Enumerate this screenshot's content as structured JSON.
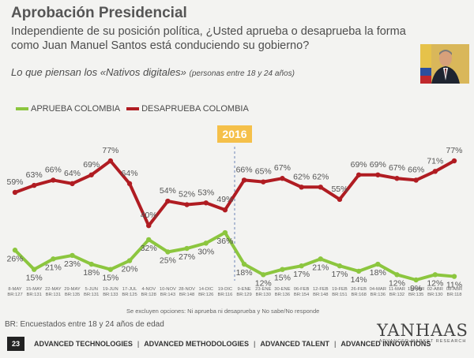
{
  "header": {
    "title": "Aprobación Presidencial",
    "question": "Independiente de su posición política, ¿Usted aprueba o desaprueba la forma como Juan Manuel Santos está conduciendo su gobierno?",
    "subtitle": "Lo que piensan los «Nativos digitales»",
    "subtitle_note": "(personas entre 18 y 24 años)"
  },
  "chart_data": {
    "type": "line",
    "title": "Aprobación Presidencial",
    "year_marker": {
      "label": "2016",
      "color": "#f5c04a",
      "after_category_index": 14
    },
    "categories": [
      "8-MAY",
      "15-MAY",
      "22-MAY",
      "29-MAY",
      "5-JUN",
      "19-JUN",
      "17-JUL",
      "4-NOV",
      "10-NOV",
      "28-NOV",
      "14-DIC",
      "19-DIC",
      "9-ENE",
      "23-ENE",
      "30-ENE",
      "06-FEB",
      "12-FEB",
      "19-FEB",
      "26-FEB",
      "04-MAR",
      "11-MAR",
      "18-MAR",
      "02-ABR",
      "08-ABR"
    ],
    "sample_sizes": [
      "BR:127",
      "BR:131",
      "BR:131",
      "BR:135",
      "BR:131",
      "BR:133",
      "BR:125",
      "BR:128",
      "BR:143",
      "BR:148",
      "BR:126",
      "BR:116",
      "BR:129",
      "BR:130",
      "BR:136",
      "BR:154",
      "BR:148",
      "BR:151",
      "BR:168",
      "BR:136",
      "BR:132",
      "BR:135",
      "BR:130",
      "BR:118"
    ],
    "series": [
      {
        "name": "APRUEBA COLOMBIA",
        "color": "#8cc63f",
        "values": [
          26,
          15,
          21,
          23,
          18,
          15,
          20,
          32,
          25,
          27,
          30,
          36,
          18,
          12,
          15,
          17,
          21,
          17,
          14,
          18,
          12,
          9,
          12,
          11
        ]
      },
      {
        "name": "DESAPRUEBA COLOMBIA",
        "color": "#b01c22",
        "values": [
          59,
          63,
          66,
          64,
          69,
          77,
          64,
          40,
          54,
          52,
          53,
          49,
          66,
          65,
          67,
          62,
          62,
          55,
          69,
          69,
          67,
          66,
          71,
          77
        ]
      }
    ],
    "ylim": [
      0,
      100
    ],
    "xlabel": "",
    "ylabel": ""
  },
  "footnote": "Se excluyen opciones: Ni aprueba ni desaprueba y No sabe/No responde",
  "base_note": "BR: Encuestados entre 18 y 24 años de edad",
  "footer": {
    "page": "23",
    "items": [
      "ADVANCED TECHNOLOGIES",
      "ADVANCED METHODOLOGIES",
      "ADVANCED TALENT",
      "ADVANCED INNOVATIONS"
    ],
    "separator": "|"
  },
  "logo": {
    "name": "YANHAAS",
    "tagline": "ADVANCED MARKET RESEARCH"
  }
}
